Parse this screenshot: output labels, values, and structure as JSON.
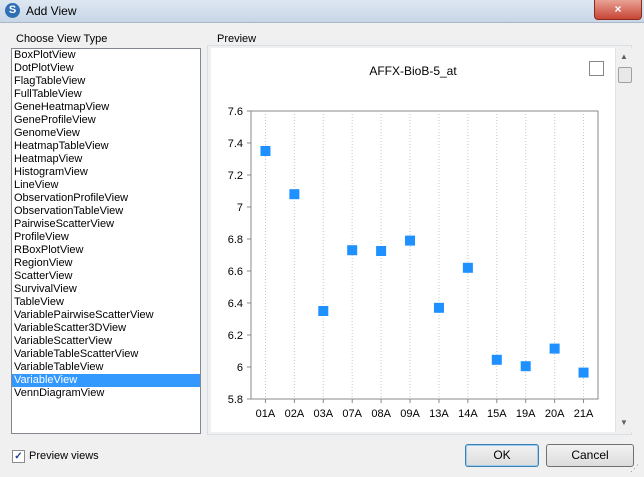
{
  "window": {
    "title": "Add View",
    "close_icon": "×"
  },
  "left_group": {
    "label": "Choose View Type",
    "items": [
      "BoxPlotView",
      "DotPlotView",
      "FlagTableView",
      "FullTableView",
      "GeneHeatmapView",
      "GeneProfileView",
      "GenomeView",
      "HeatmapTableView",
      "HeatmapView",
      "HistogramView",
      "LineView",
      "ObservationProfileView",
      "ObservationTableView",
      "PairwiseScatterView",
      "ProfileView",
      "RBoxPlotView",
      "RegionView",
      "ScatterView",
      "SurvivalView",
      "TableView",
      "VariablePairwiseScatterView",
      "VariableScatter3DView",
      "VariableScatterView",
      "VariableTableScatterView",
      "VariableTableView",
      "VariableView",
      "VennDiagramView"
    ],
    "selected_index": 25
  },
  "preview_group": {
    "label": "Preview"
  },
  "chart_data": {
    "type": "scatter",
    "title": "AFFX-BioB-5_at",
    "categories": [
      "01A",
      "02A",
      "03A",
      "07A",
      "08A",
      "09A",
      "13A",
      "14A",
      "15A",
      "19A",
      "20A",
      "21A"
    ],
    "values": [
      7.35,
      7.08,
      6.35,
      6.73,
      6.725,
      6.79,
      6.37,
      6.62,
      6.045,
      6.005,
      6.115,
      5.965
    ],
    "yticks": [
      "7.6",
      "7.4",
      "7.2",
      "7",
      "6.8",
      "6.6",
      "6.4",
      "6.2",
      "6",
      "5.8"
    ],
    "ylim": [
      5.8,
      7.6
    ],
    "grid": "vertical-dotted",
    "marker_color": "#1e90ff"
  },
  "footer": {
    "preview_checkbox_label": "Preview views",
    "preview_checked": true,
    "check_mark": "✓",
    "ok_label": "OK",
    "cancel_label": "Cancel"
  }
}
